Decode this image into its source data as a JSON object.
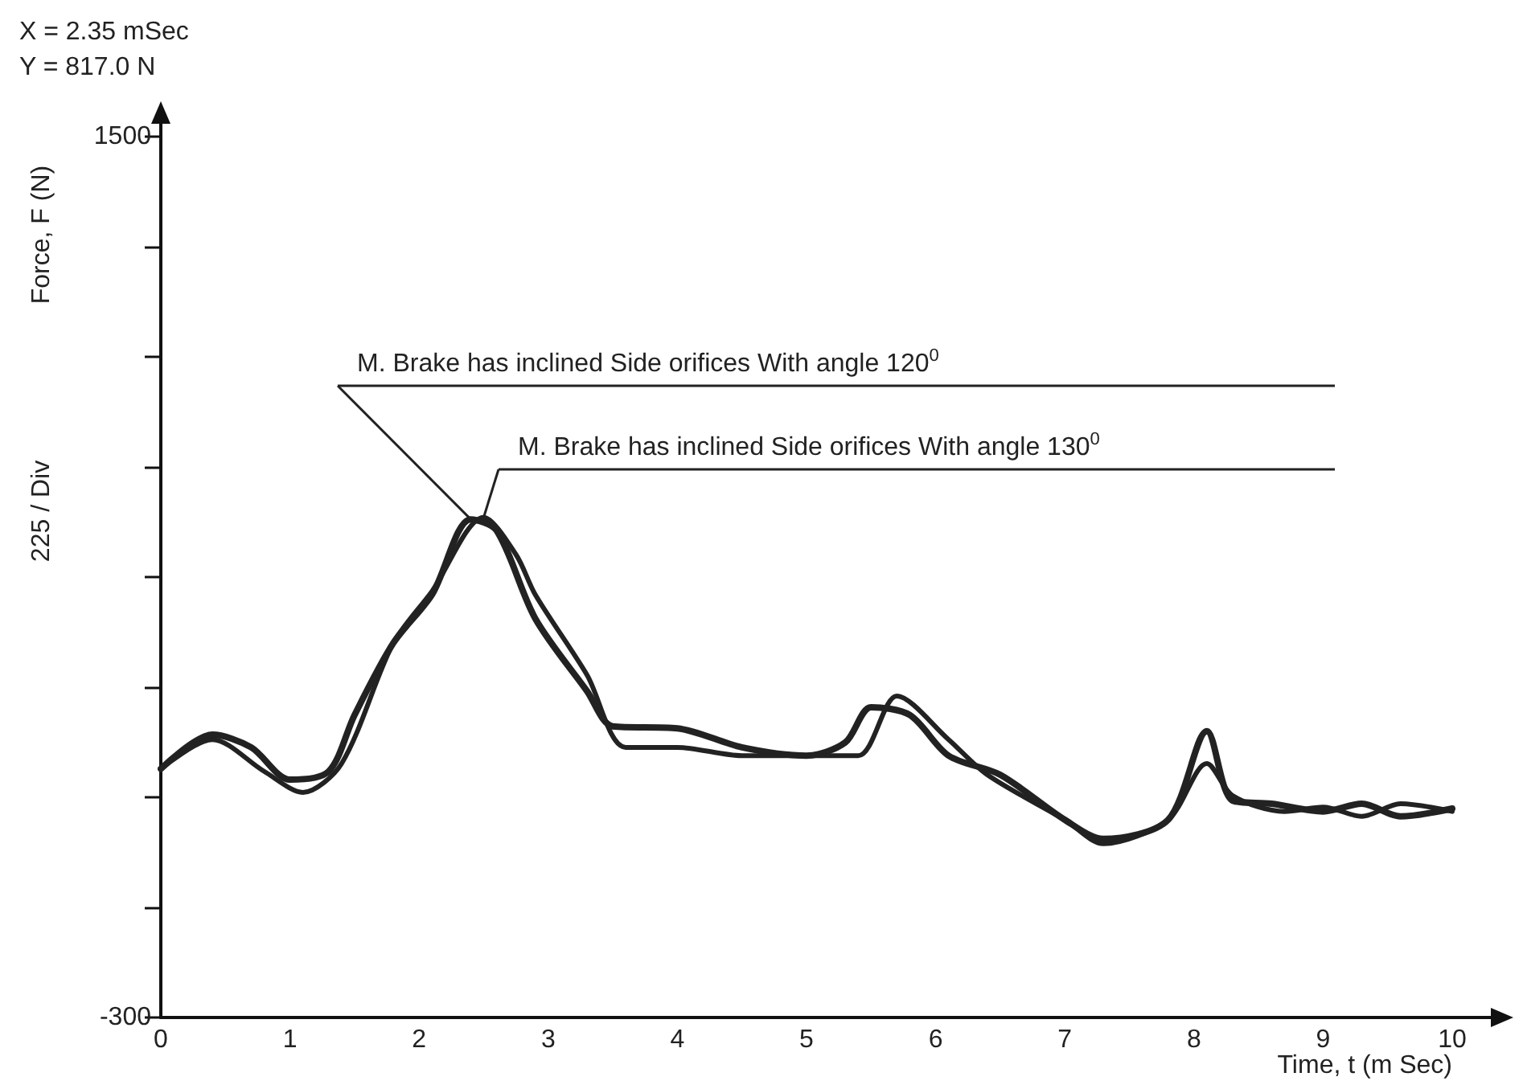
{
  "chart_data": {
    "type": "line",
    "xlabel": "Time, t (m Sec)",
    "ylabel": "Force, F (N)",
    "annotations": [
      "X = 2.35 mSec",
      "Y = 817.0 N",
      "225 / Div",
      {
        "text": "M. Brake has inclined Side orifices With angle 120$^{0}$",
        "x": 2.4,
        "y": 718
      },
      {
        "text": "M. Brake has inclined Side orifices With angle 130$^{0}$",
        "x": 2.5,
        "y": 722
      }
    ],
    "series": [
      {
        "color": "#222222",
        "x": [
          0,
          0.4,
          0.7,
          1.0,
          1.3,
          1.5,
          1.8,
          2.1,
          2.4,
          2.6,
          2.9,
          3.3,
          3.5,
          4.0,
          4.5,
          5.0,
          5.3,
          5.5,
          5.8,
          6.1,
          6.5,
          7.0,
          7.3,
          7.8,
          8.1,
          8.3,
          8.6,
          9.0,
          9.3,
          9.6,
          10
        ],
        "values": [
          208,
          278,
          252,
          186,
          203,
          318,
          465,
          564,
          718,
          695,
          515,
          367,
          295,
          291,
          252,
          235,
          262,
          334,
          318,
          235,
          196,
          104,
          65,
          104,
          285,
          143,
          137,
          121,
          137,
          111,
          127
        ]
      },
      {
        "color": "#222222",
        "x": [
          0,
          0.4,
          0.8,
          1.1,
          1.4,
          1.8,
          2.1,
          2.5,
          2.75,
          2.9,
          3.3,
          3.6,
          4.0,
          4.5,
          5.0,
          5.4,
          5.7,
          6.1,
          6.4,
          7.0,
          7.3,
          7.8,
          8.1,
          8.3,
          8.7,
          9.0,
          9.3,
          9.6,
          10
        ],
        "values": [
          208,
          268,
          203,
          160,
          219,
          465,
          571,
          722,
          646,
          564,
          400,
          252,
          252,
          235,
          235,
          235,
          357,
          268,
          196,
          104,
          55,
          104,
          219,
          153,
          121,
          130,
          111,
          137,
          121
        ]
      }
    ],
    "xlim": [
      0,
      10
    ],
    "xticks": [
      0,
      1,
      2,
      3,
      4,
      5,
      6,
      7,
      8,
      9,
      10
    ],
    "ylim": [
      -300,
      1500
    ],
    "yticks": [
      -300,
      {
        "value": -75,
        "label": null
      },
      {
        "value": 150,
        "label": null
      },
      {
        "value": 375,
        "label": null
      },
      {
        "value": 600,
        "label": null
      },
      {
        "value": 825,
        "label": null
      },
      {
        "value": 1050,
        "label": null
      },
      {
        "value": 1275,
        "label": null
      },
      1500
    ],
    "grid": false,
    "marker": "none",
    "line_style": "solid"
  }
}
